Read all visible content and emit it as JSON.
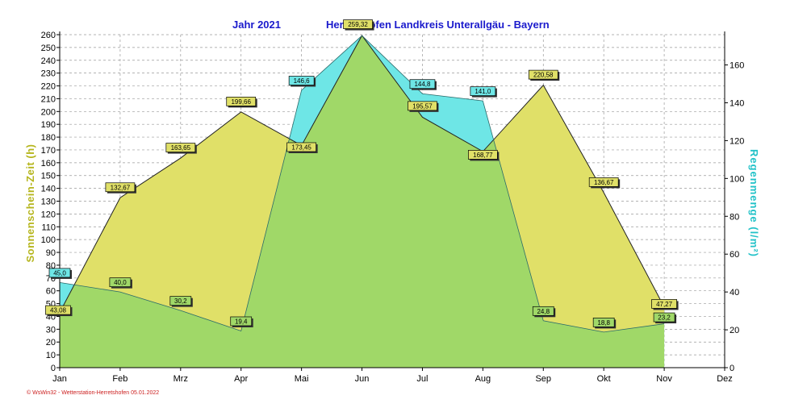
{
  "title_left": "Jahr  2021",
  "title_right": "Herretshofen Landkreis Unterallgäu - Bayern",
  "footer": "© WsWin32 - Wetterstation-Herretshofen 05.01.2022",
  "colors": {
    "sun_fill": "#e0e068",
    "rain_fill": "#6ee6e6",
    "overlap_fill": "#a0d868",
    "grid": "#9a9a9a",
    "title": "#1a1acc",
    "left_axis_title": "#b5b51c",
    "right_axis_title": "#22c2c8"
  },
  "chart_data": {
    "type": "area",
    "categories": [
      "Jan",
      "Feb",
      "Mrz",
      "Apr",
      "Mai",
      "Jun",
      "Jul",
      "Aug",
      "Sep",
      "Okt",
      "Nov",
      "Dez"
    ],
    "left_axis": {
      "label": "Sonnenschein-Zeit  (h)",
      "range": [
        0,
        260
      ],
      "ticks": [
        0,
        10,
        20,
        30,
        40,
        50,
        60,
        70,
        80,
        90,
        100,
        110,
        120,
        130,
        140,
        150,
        160,
        170,
        180,
        190,
        200,
        210,
        220,
        230,
        240,
        250,
        260
      ]
    },
    "right_axis": {
      "label": "Regenmenge  (l/m²)",
      "range": [
        0,
        176
      ],
      "ticks": [
        0,
        20,
        40,
        60,
        80,
        100,
        120,
        140,
        160
      ]
    },
    "grid": true,
    "series": [
      {
        "name": "Sonnenschein-Zeit",
        "axis": "left",
        "values": [
          43.08,
          132.67,
          163.65,
          199.66,
          173.45,
          259.32,
          195.57,
          168.77,
          220.58,
          136.67,
          47.27,
          null
        ],
        "labels": [
          "43,08",
          "132,67",
          "163,65",
          "199,66",
          "173,45",
          "259,32",
          "195,57",
          "168,77",
          "220,58",
          "136,67",
          "47,27",
          ""
        ]
      },
      {
        "name": "Regenmenge",
        "axis": "right",
        "values": [
          45.0,
          40.0,
          30.2,
          19.4,
          146.6,
          175.5,
          144.8,
          141.0,
          24.8,
          18.8,
          23.2,
          null
        ],
        "labels": [
          "45,0",
          "40,0",
          "30,2",
          "19,4",
          "146,6",
          "",
          "144,8",
          "141,0",
          "24,8",
          "18,8",
          "23,2",
          ""
        ]
      }
    ]
  }
}
